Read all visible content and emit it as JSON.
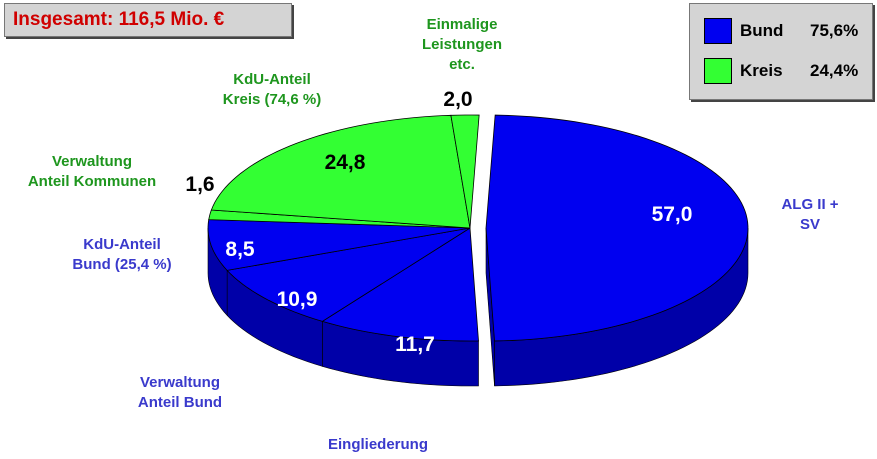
{
  "chart_data": {
    "type": "pie",
    "title": "Insgesamt: 116,5 Mio. €",
    "categories": [
      "ALG II + SV",
      "Eingliederung",
      "Verwaltung\nAnteil Bund",
      "KdU-Anteil\nBund (25,4 %)",
      "Verwaltung\nAnteil Kommunen",
      "KdU-Anteil\nKreis (74,6 %)",
      "Einmalige\nLeistungen\netc."
    ],
    "values": [
      57.0,
      11.7,
      10.9,
      8.5,
      1.6,
      24.8,
      2.0
    ],
    "value_labels": [
      "57,0",
      "11,7",
      "10,9",
      "8,5",
      "1,6",
      "24,8",
      "2,0"
    ],
    "colors": [
      "#0000f0",
      "#0000f0",
      "#0000f0",
      "#0000f0",
      "#33ff33",
      "#33ff33",
      "#33ff33"
    ],
    "legend": [
      {
        "name": "Bund",
        "color": "#0000f0",
        "share": 75.6,
        "share_label": "75,6%"
      },
      {
        "name": "Kreis",
        "color": "#33ff33",
        "share": 24.4,
        "share_label": "24,4%"
      }
    ]
  }
}
